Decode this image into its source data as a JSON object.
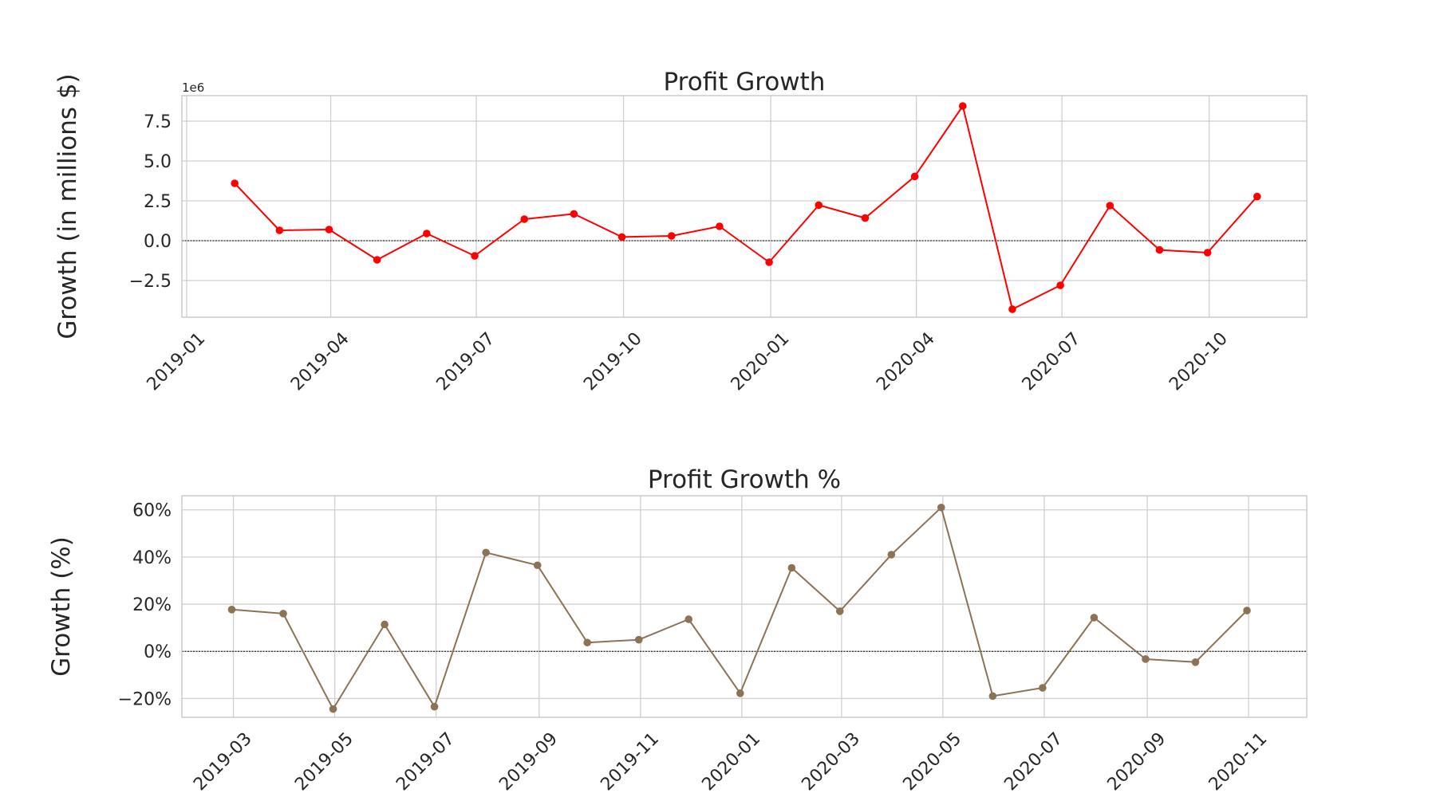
{
  "chart_data": [
    {
      "type": "line",
      "title": "Profit Growth",
      "xlabel": "",
      "ylabel": "Growth (in millions $)",
      "y_offset_label": "1e6",
      "y_scale": 1000000,
      "color": "#ff0000",
      "zero_line": true,
      "grid": true,
      "ylim": [
        -4800000,
        9100000
      ],
      "xlim": [
        "2018-12-29",
        "2020-12-01"
      ],
      "x_ticks": [
        {
          "date": "2019-01-01",
          "label": "2019-01"
        },
        {
          "date": "2019-04-01",
          "label": "2019-04"
        },
        {
          "date": "2019-07-01",
          "label": "2019-07"
        },
        {
          "date": "2019-10-01",
          "label": "2019-10"
        },
        {
          "date": "2020-01-01",
          "label": "2020-01"
        },
        {
          "date": "2020-04-01",
          "label": "2020-04"
        },
        {
          "date": "2020-07-01",
          "label": "2020-07"
        },
        {
          "date": "2020-10-01",
          "label": "2020-10"
        }
      ],
      "y_ticks": [
        {
          "value": -2500000,
          "label": "−2.5"
        },
        {
          "value": 0,
          "label": "0.0"
        },
        {
          "value": 2500000,
          "label": "2.5"
        },
        {
          "value": 5000000,
          "label": "5.0"
        },
        {
          "value": 7500000,
          "label": "7.5"
        }
      ],
      "series": [
        {
          "x": [
            "2019-01-31",
            "2019-02-28",
            "2019-03-31",
            "2019-04-30",
            "2019-05-31",
            "2019-06-30",
            "2019-07-31",
            "2019-08-31",
            "2019-09-30",
            "2019-10-31",
            "2019-11-30",
            "2019-12-31",
            "2020-01-31",
            "2020-02-29",
            "2020-03-31",
            "2020-04-30",
            "2020-05-31",
            "2020-06-30",
            "2020-07-31",
            "2020-08-31",
            "2020-09-30",
            "2020-10-31"
          ],
          "y": [
            3600000,
            650000,
            700000,
            -1200000,
            450000,
            -950000,
            1350000,
            1680000,
            230000,
            300000,
            900000,
            -1350000,
            2230000,
            1420000,
            4030000,
            8450000,
            -4300000,
            -2800000,
            2200000,
            -580000,
            -750000,
            2770000
          ]
        }
      ]
    },
    {
      "type": "line",
      "title": "Profit Growth %",
      "xlabel": "",
      "ylabel": "Growth (%)",
      "color": "#8b7355",
      "zero_line": true,
      "grid": true,
      "ylim": [
        -28,
        66
      ],
      "xlim": [
        "2019-01-29",
        "2020-12-06"
      ],
      "x_ticks": [
        {
          "date": "2019-03-01",
          "label": "2019-03"
        },
        {
          "date": "2019-05-01",
          "label": "2019-05"
        },
        {
          "date": "2019-07-01",
          "label": "2019-07"
        },
        {
          "date": "2019-09-01",
          "label": "2019-09"
        },
        {
          "date": "2019-11-01",
          "label": "2019-11"
        },
        {
          "date": "2020-01-01",
          "label": "2020-01"
        },
        {
          "date": "2020-03-01",
          "label": "2020-03"
        },
        {
          "date": "2020-05-01",
          "label": "2020-05"
        },
        {
          "date": "2020-07-01",
          "label": "2020-07"
        },
        {
          "date": "2020-09-01",
          "label": "2020-09"
        },
        {
          "date": "2020-11-01",
          "label": "2020-11"
        }
      ],
      "y_ticks": [
        {
          "value": -20,
          "label": "−20%"
        },
        {
          "value": 0,
          "label": "0%"
        },
        {
          "value": 20,
          "label": "20%"
        },
        {
          "value": 40,
          "label": "40%"
        },
        {
          "value": 60,
          "label": "60%"
        }
      ],
      "series": [
        {
          "x": [
            "2019-02-28",
            "2019-03-31",
            "2019-04-30",
            "2019-05-31",
            "2019-06-30",
            "2019-07-31",
            "2019-08-31",
            "2019-09-30",
            "2019-10-31",
            "2019-11-30",
            "2019-12-31",
            "2020-01-31",
            "2020-02-29",
            "2020-03-31",
            "2020-04-30",
            "2020-05-31",
            "2020-06-30",
            "2020-07-31",
            "2020-08-31",
            "2020-09-30",
            "2020-10-31"
          ],
          "y": [
            17.7,
            16.0,
            -24.5,
            11.4,
            -23.5,
            41.9,
            36.5,
            3.7,
            4.9,
            13.6,
            -17.8,
            35.4,
            17.0,
            41.0,
            61.0,
            -19.0,
            -15.5,
            14.3,
            -3.3,
            -4.6,
            17.3
          ]
        }
      ]
    }
  ]
}
